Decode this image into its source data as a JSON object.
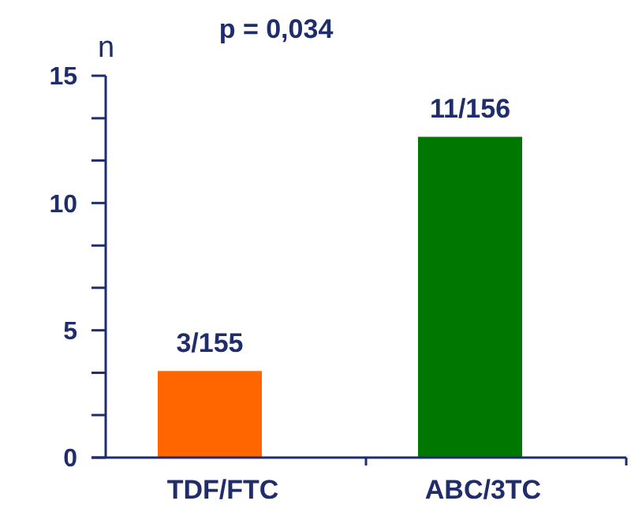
{
  "chart_data": {
    "type": "bar",
    "title": "p = 0,034",
    "ylabel": "n",
    "categories": [
      "TDF/FTC",
      "ABC/3TC"
    ],
    "values": [
      3.4,
      12.6
    ],
    "colors": [
      "#ff6600",
      "#007700"
    ],
    "value_labels": [
      "3/155",
      "11/156"
    ],
    "ylim": [
      0,
      15
    ],
    "yticks": [
      0,
      {
        "value": 1.67,
        "label": null
      },
      {
        "value": 3.33,
        "label": null
      },
      5,
      {
        "value": 6.67,
        "label": null
      },
      {
        "value": 8.33,
        "label": null
      },
      10,
      {
        "value": 11.67,
        "label": null
      },
      {
        "value": 13.33,
        "label": null
      },
      15
    ],
    "grid": false
  }
}
